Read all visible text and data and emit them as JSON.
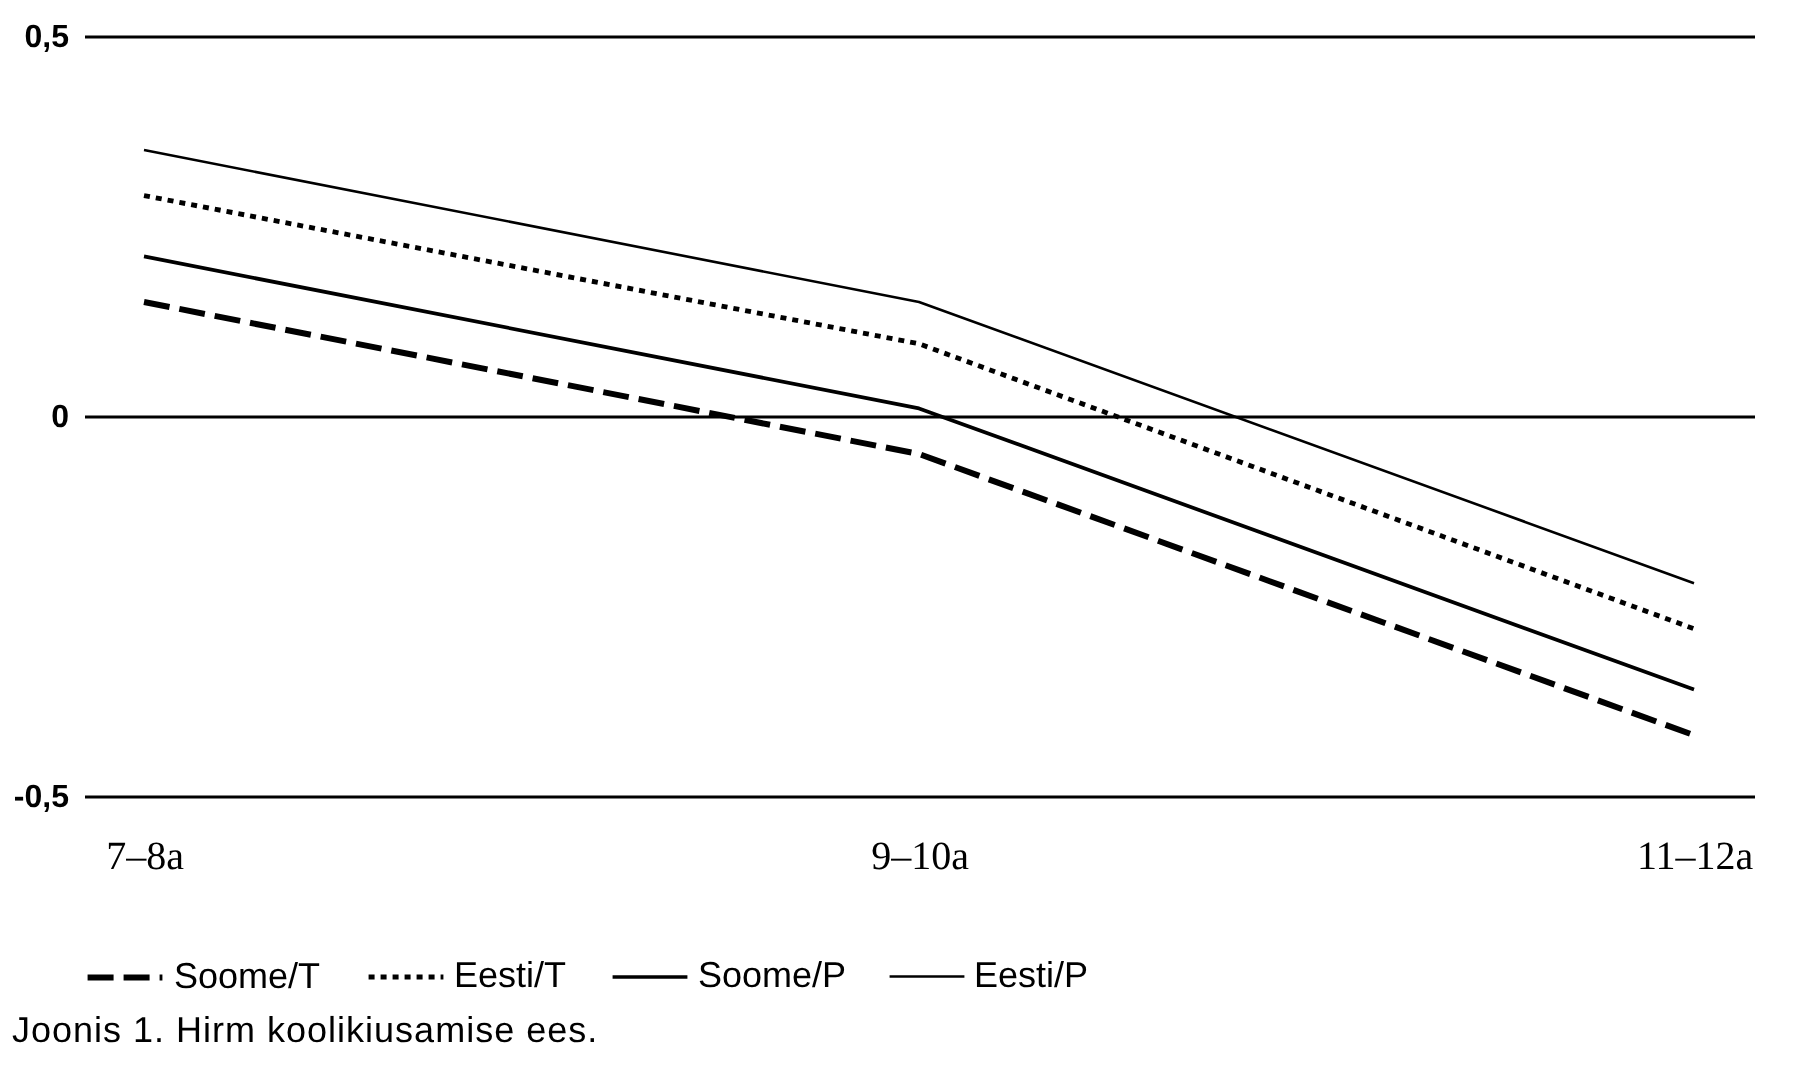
{
  "chart_data": {
    "type": "line",
    "categories": [
      "7–8a",
      "9–10a",
      "11–12a"
    ],
    "series": [
      {
        "name": "Soome/T",
        "color": "#000000",
        "line_style": "dashed",
        "values": [
          0.15,
          -0.05,
          -0.42
        ]
      },
      {
        "name": "Eesti/T",
        "color": "#000000",
        "line_style": "dotted",
        "values": [
          0.29,
          0.095,
          -0.28
        ]
      },
      {
        "name": "Soome/P",
        "color": "#000000",
        "line_style": "solid",
        "values": [
          0.21,
          0.01,
          -0.36
        ]
      },
      {
        "name": "Eesti/P",
        "color": "#000000",
        "line_style": "solid",
        "values": [
          0.35,
          0.15,
          -0.22
        ]
      }
    ],
    "ylim": [
      -0.5,
      0.5
    ],
    "yticks": [
      {
        "value": -0.5,
        "label": "-0,5"
      },
      {
        "value": 0,
        "label": "0"
      },
      {
        "value": 0.5,
        "label": "0,5"
      }
    ],
    "grid": "y",
    "legend": "bottom",
    "marker": "none",
    "annotations": [
      "Joonis 1. Hirm koolikiusamise ees."
    ]
  }
}
